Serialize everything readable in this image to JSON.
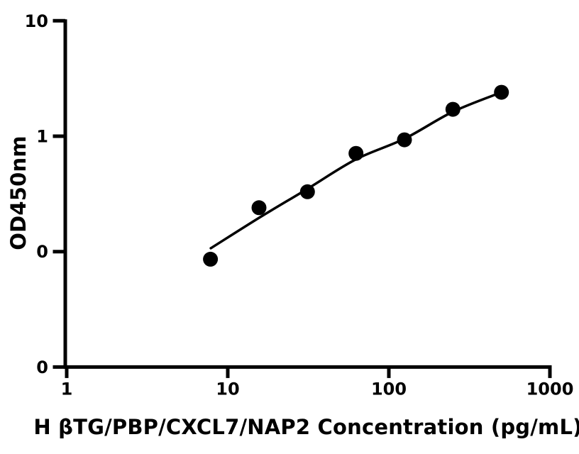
{
  "colors": {
    "background": "#ffffff",
    "axis": "#000000",
    "text": "#000000",
    "marker": "#000000",
    "curve": "#000000"
  },
  "chart_data": {
    "type": "scatter",
    "title": "",
    "xlabel": "H βTG/PBP/CXCL7/NAP2 Concentration (pg/mL)",
    "ylabel": "OD450nm",
    "x_scale": "log",
    "y_scale": "log",
    "xlim": [
      1,
      1000
    ],
    "ylim": [
      0.01,
      10
    ],
    "grid": false,
    "legend": "none",
    "x_ticks": [
      {
        "value": 1,
        "label": "1"
      },
      {
        "value": 10,
        "label": "10"
      },
      {
        "value": 100,
        "label": "100"
      },
      {
        "value": 1000,
        "label": "1000"
      }
    ],
    "y_ticks": [
      {
        "value": 10,
        "label": "10"
      },
      {
        "value": 1,
        "label": "1"
      },
      {
        "value": 0.1,
        "label": "0"
      },
      {
        "value": 0.01,
        "label": "0"
      }
    ],
    "series": [
      {
        "name": "standard-curve-points",
        "marker": "circle",
        "color": "#000000",
        "points": [
          {
            "x": 7.81,
            "y": 0.086
          },
          {
            "x": 15.63,
            "y": 0.24
          },
          {
            "x": 31.25,
            "y": 0.33
          },
          {
            "x": 62.5,
            "y": 0.71
          },
          {
            "x": 125,
            "y": 0.93
          },
          {
            "x": 250,
            "y": 1.71
          },
          {
            "x": 500,
            "y": 2.4
          }
        ]
      }
    ],
    "fit_curve": {
      "name": "4pl-fit-curve",
      "color": "#000000",
      "points": [
        [
          7.85,
          0.107
        ],
        [
          15.63,
          0.196
        ],
        [
          31.25,
          0.35
        ],
        [
          62.5,
          0.63
        ],
        [
          125,
          0.95
        ],
        [
          250,
          1.63
        ],
        [
          500,
          2.4
        ]
      ]
    }
  }
}
